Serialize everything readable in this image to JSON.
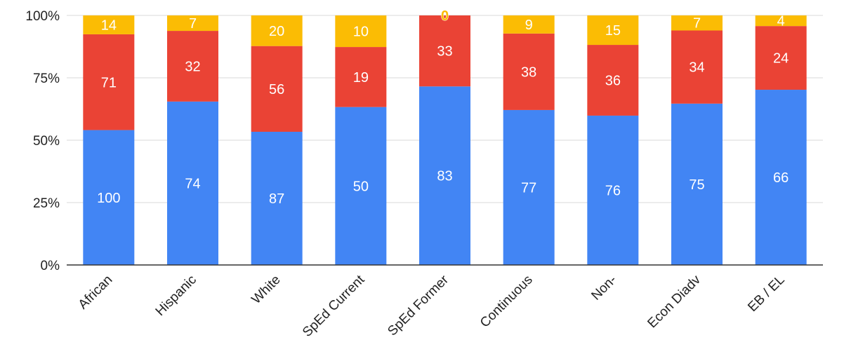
{
  "chart_data": {
    "type": "bar",
    "stacked": "percent",
    "categories": [
      "African",
      "Hispanic",
      "White",
      "SpEd Current",
      "SpEd Former",
      "Continuous",
      "Non-",
      "Econ Diadv",
      "EB / EL"
    ],
    "series": [
      {
        "values": [
          100,
          74,
          87,
          50,
          83,
          77,
          76,
          75,
          66
        ],
        "color": "#4285f4"
      },
      {
        "values": [
          71,
          32,
          56,
          19,
          33,
          38,
          36,
          34,
          24
        ],
        "color": "#ea4335"
      },
      {
        "values": [
          14,
          7,
          20,
          10,
          0,
          9,
          15,
          7,
          4
        ],
        "color": "#fbbc04"
      }
    ],
    "y_ticks": [
      "0%",
      "25%",
      "50%",
      "75%",
      "100%"
    ],
    "ylim": [
      0,
      100
    ],
    "grid": true,
    "legend": "none",
    "title": "",
    "xlabel": "",
    "ylabel": ""
  }
}
